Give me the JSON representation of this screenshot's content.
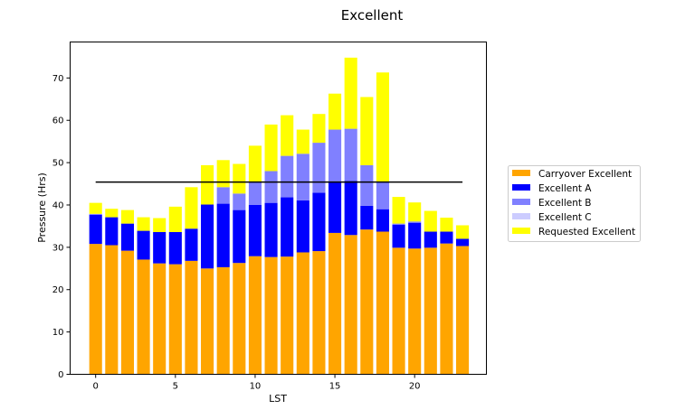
{
  "chart_data": {
    "type": "bar",
    "stacked": true,
    "title": "Excellent",
    "xlabel": "LST",
    "ylabel": "Pressure (Hrs)",
    "xlim": [
      -1.6,
      24.5
    ],
    "ylim": [
      0,
      78.5
    ],
    "xticks": [
      0,
      5,
      10,
      15,
      20
    ],
    "yticks": [
      0,
      10,
      20,
      30,
      40,
      50,
      60,
      70
    ],
    "grid": false,
    "legend_position": "right, outside",
    "x": [
      0,
      1,
      2,
      3,
      4,
      5,
      6,
      7,
      8,
      9,
      10,
      11,
      12,
      13,
      14,
      15,
      16,
      17,
      18,
      19,
      20,
      21,
      22,
      23
    ],
    "series": [
      {
        "name": "Carryover Excellent",
        "color": "#FFA500",
        "values": [
          30.8,
          30.5,
          29.2,
          27.1,
          26.2,
          26.0,
          26.8,
          25.0,
          25.3,
          26.3,
          27.9,
          27.7,
          27.8,
          28.8,
          29.1,
          33.4,
          32.9,
          34.2,
          33.7,
          29.9,
          29.7,
          29.9,
          30.9,
          30.3
        ]
      },
      {
        "name": "Excellent A",
        "color": "#0000FF",
        "values": [
          6.9,
          6.6,
          6.4,
          6.8,
          7.4,
          7.6,
          7.6,
          15.1,
          15.0,
          12.5,
          12.1,
          12.8,
          14.0,
          12.3,
          13.8,
          12.1,
          12.8,
          5.6,
          5.3,
          5.4,
          6.1,
          3.8,
          2.8,
          1.7
        ]
      },
      {
        "name": "Excellent B",
        "color": "#8080FF",
        "values": [
          0.2,
          0,
          0,
          0,
          0,
          0,
          0,
          0,
          3.9,
          3.9,
          5.4,
          7.5,
          9.8,
          11.0,
          11.8,
          12.3,
          12.3,
          9.6,
          6.5,
          0.3,
          0.3,
          0,
          0,
          0
        ]
      },
      {
        "name": "Excellent C",
        "color": "#CCCCFF",
        "values": [
          0,
          0,
          0,
          0,
          0,
          0,
          0,
          0,
          0,
          0,
          0,
          0,
          0,
          0,
          0,
          0,
          0,
          0,
          0,
          0,
          0,
          0,
          0,
          0
        ]
      },
      {
        "name": "Requested Excellent",
        "color": "#FFFF00",
        "values": [
          2.6,
          2.0,
          3.2,
          3.2,
          3.3,
          6.0,
          9.8,
          9.3,
          6.4,
          7.0,
          8.6,
          11.0,
          9.6,
          5.7,
          6.8,
          8.5,
          16.8,
          16.1,
          25.8,
          6.3,
          4.5,
          4.9,
          3.3,
          3.2
        ]
      }
    ],
    "reference_line": {
      "y": 45.4,
      "x_range": [
        0,
        23
      ],
      "color": "#000000"
    }
  }
}
